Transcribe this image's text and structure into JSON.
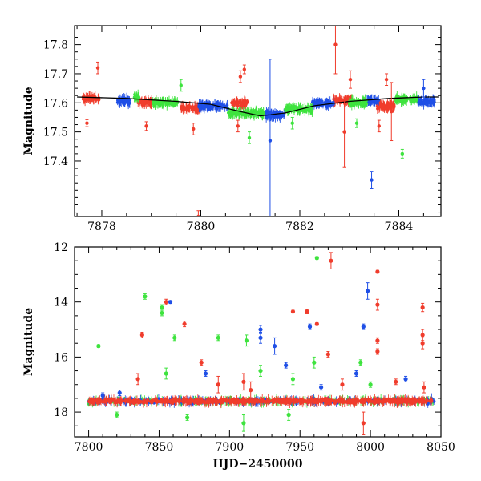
{
  "colors": {
    "blue": "#1f4fe6",
    "red": "#f03c2c",
    "green": "#3ee33e",
    "model": "#000000"
  },
  "chart_data": [
    {
      "type": "scatter",
      "title": "",
      "xlabel": "",
      "ylabel": "Magnitude",
      "xlim": [
        7877.45,
        7884.85
      ],
      "ylim": [
        17.865,
        17.21
      ],
      "y_inverted": true,
      "grid": false,
      "x_ticks": [
        7878,
        7880,
        7882,
        7884
      ],
      "x_ticklabels": [
        "7878",
        "7880",
        "7882",
        "7884"
      ],
      "y_ticks": [
        17.4,
        17.5,
        17.6,
        17.7,
        17.8
      ],
      "y_ticklabels": [
        "17.4",
        "17.5",
        "17.6",
        "17.7",
        "17.8"
      ],
      "model_curve": {
        "color": "model",
        "x": [
          7877.5,
          7878.5,
          7879.5,
          7880.2,
          7880.8,
          7881.2,
          7881.7,
          7882.3,
          7883.0,
          7883.8,
          7884.5,
          7884.8
        ],
        "y": [
          17.62,
          17.615,
          17.605,
          17.595,
          17.57,
          17.555,
          17.565,
          17.59,
          17.605,
          17.615,
          17.62,
          17.62
        ]
      },
      "series": [
        {
          "color": "red",
          "segments": [
            [
              7877.62,
              7877.95,
              17.615
            ],
            [
              7878.72,
              7879.1,
              17.602
            ],
            [
              7879.6,
              7880.0,
              17.582
            ],
            [
              7880.62,
              7880.95,
              17.598
            ],
            [
              7882.68,
              7883.05,
              17.608
            ],
            [
              7883.55,
              7883.92,
              17.588
            ]
          ],
          "outliers": [
            [
              7877.7,
              17.53,
              0.012
            ],
            [
              7877.92,
              17.72,
              0.02
            ],
            [
              7878.9,
              17.52,
              0.015
            ],
            [
              7879.85,
              17.51,
              0.02
            ],
            [
              7879.95,
              17.21,
              0.02
            ],
            [
              7880.75,
              17.52,
              0.02
            ],
            [
              7880.8,
              17.69,
              0.02
            ],
            [
              7880.88,
              17.715,
              0.015
            ],
            [
              7882.72,
              17.8,
              0.1
            ],
            [
              7882.9,
              17.5,
              0.12
            ],
            [
              7883.02,
              17.68,
              0.03
            ],
            [
              7883.6,
              17.52,
              0.02
            ],
            [
              7883.75,
              17.68,
              0.02
            ],
            [
              7883.85,
              17.57,
              0.1
            ]
          ]
        },
        {
          "color": "blue",
          "segments": [
            [
              7878.28,
              7878.58,
              17.607
            ],
            [
              7879.95,
              7880.55,
              17.59
            ],
            [
              7881.3,
              7881.68,
              17.558
            ],
            [
              7882.25,
              7882.68,
              17.598
            ],
            [
              7883.35,
              7883.6,
              17.607
            ],
            [
              7884.38,
              7884.72,
              17.605
            ]
          ],
          "outliers": [
            [
              7881.4,
              17.47,
              0.28
            ],
            [
              7883.45,
              17.335,
              0.03
            ],
            [
              7884.5,
              17.65,
              0.03
            ]
          ]
        },
        {
          "color": "green",
          "segments": [
            [
              7878.65,
              7878.75,
              17.62
            ],
            [
              7879.0,
              7879.55,
              17.6
            ],
            [
              7880.55,
              7881.3,
              17.565
            ],
            [
              7881.7,
              7882.25,
              17.578
            ],
            [
              7883.0,
              7883.35,
              17.6
            ],
            [
              7883.92,
              7884.38,
              17.612
            ]
          ],
          "outliers": [
            [
              7879.6,
              17.66,
              0.02
            ],
            [
              7880.98,
              17.48,
              0.02
            ],
            [
              7881.85,
              17.53,
              0.02
            ],
            [
              7884.07,
              17.425,
              0.015
            ],
            [
              7883.15,
              17.53,
              0.015
            ]
          ]
        }
      ]
    },
    {
      "type": "scatter",
      "title": "",
      "xlabel": "HJD−2450000",
      "ylabel": "Magnitude",
      "xlim": [
        7790,
        8050
      ],
      "ylim": [
        12.0,
        18.9
      ],
      "y_inverted": true,
      "grid": false,
      "x_ticks": [
        7800,
        7850,
        7900,
        7950,
        8000,
        8050
      ],
      "x_ticklabels": [
        "7800",
        "7850",
        "7900",
        "7950",
        "8000",
        "8050"
      ],
      "y_ticks": [
        12,
        14,
        16,
        18
      ],
      "y_ticklabels": [
        "12",
        "14",
        "16",
        "18"
      ],
      "baseline": {
        "x_start": 7800,
        "x_end": 8045,
        "y": 17.6
      },
      "series": [
        {
          "color": "red",
          "outliers": [
            [
              7838,
              15.2,
              0.1
            ],
            [
              7855,
              14.0,
              0.1
            ],
            [
              7868,
              14.8,
              0.1
            ],
            [
              7880,
              16.2,
              0.1
            ],
            [
              7945,
              14.35,
              0.05
            ],
            [
              7955,
              14.35,
              0.08
            ],
            [
              7962,
              14.8,
              0.05
            ],
            [
              7972,
              12.5,
              0.3
            ],
            [
              7970,
              15.9,
              0.1
            ],
            [
              8005,
              12.9,
              0.05
            ],
            [
              8005,
              14.1,
              0.2
            ],
            [
              8005,
              15.4,
              0.1
            ],
            [
              8005,
              15.8,
              0.1
            ],
            [
              8037,
              14.2,
              0.15
            ],
            [
              8037,
              15.2,
              0.2
            ],
            [
              8037,
              15.5,
              0.2
            ],
            [
              7835,
              16.8,
              0.2
            ],
            [
              7892,
              17.0,
              0.3
            ],
            [
              7910,
              16.9,
              0.3
            ],
            [
              7915,
              17.2,
              0.3
            ],
            [
              7980,
              17.0,
              0.2
            ],
            [
              8018,
              16.9,
              0.1
            ],
            [
              8038,
              17.1,
              0.2
            ],
            [
              7995,
              18.4,
              0.4
            ]
          ]
        },
        {
          "color": "blue",
          "outliers": [
            [
              7858,
              14.0,
              0.05
            ],
            [
              7922,
              15.0,
              0.15
            ],
            [
              7922,
              15.3,
              0.2
            ],
            [
              7932,
              15.6,
              0.3
            ],
            [
              7957,
              14.9,
              0.1
            ],
            [
              7998,
              13.6,
              0.3
            ],
            [
              7995,
              14.9,
              0.1
            ],
            [
              7883,
              16.6,
              0.1
            ],
            [
              7940,
              16.3,
              0.1
            ],
            [
              7990,
              16.6,
              0.1
            ],
            [
              8025,
              16.8,
              0.1
            ],
            [
              7810,
              17.4,
              0.1
            ],
            [
              7822,
              17.3,
              0.1
            ],
            [
              7965,
              17.1,
              0.1
            ]
          ]
        },
        {
          "color": "green",
          "outliers": [
            [
              7807,
              15.6,
              0.05
            ],
            [
              7840,
              13.8,
              0.1
            ],
            [
              7852,
              14.2,
              0.1
            ],
            [
              7852,
              14.4,
              0.1
            ],
            [
              7861,
              15.3,
              0.1
            ],
            [
              7962,
              12.4,
              0.05
            ],
            [
              7892,
              15.3,
              0.1
            ],
            [
              7912,
              15.4,
              0.2
            ],
            [
              7855,
              16.6,
              0.2
            ],
            [
              7922,
              16.5,
              0.2
            ],
            [
              7945,
              16.8,
              0.2
            ],
            [
              7960,
              16.2,
              0.2
            ],
            [
              7993,
              16.2,
              0.1
            ],
            [
              8000,
              17.0,
              0.1
            ],
            [
              7820,
              18.1,
              0.1
            ],
            [
              7870,
              18.2,
              0.1
            ],
            [
              7910,
              18.4,
              0.3
            ],
            [
              7942,
              18.1,
              0.2
            ]
          ]
        }
      ]
    }
  ]
}
